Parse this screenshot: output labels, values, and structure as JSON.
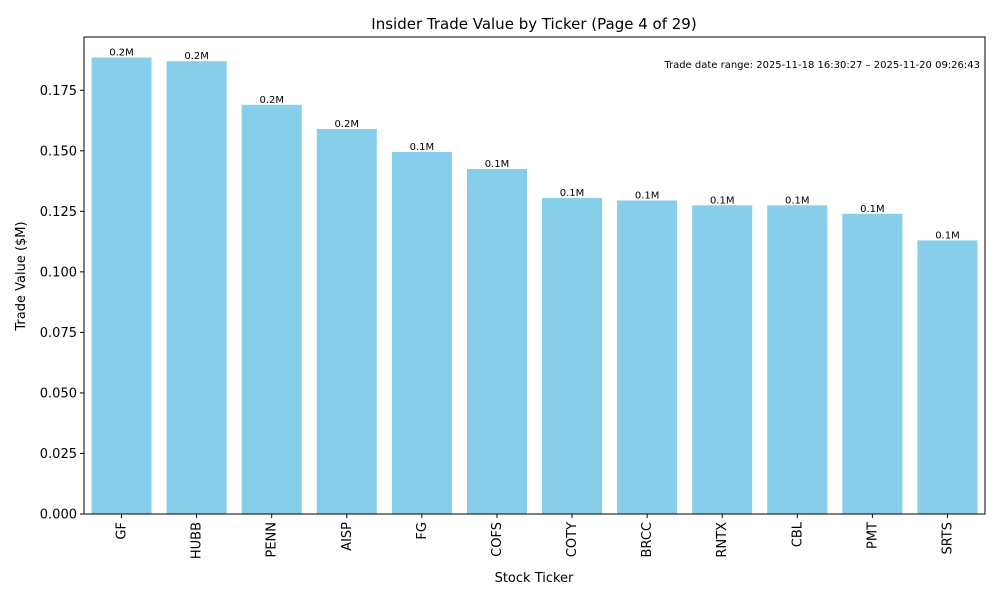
{
  "chart_data": {
    "type": "bar",
    "title": "Insider Trade Value by Ticker (Page 4 of 29)",
    "xlabel": "Stock Ticker",
    "ylabel": "Trade Value ($M)",
    "ylim": [
      0,
      0.197
    ],
    "yticks": [
      0.0,
      0.025,
      0.05,
      0.075,
      0.1,
      0.125,
      0.15,
      0.175
    ],
    "ytick_labels": [
      "0.000",
      "0.025",
      "0.050",
      "0.075",
      "0.100",
      "0.125",
      "0.150",
      "0.175"
    ],
    "categories": [
      "GF",
      "HUBB",
      "PENN",
      "AISP",
      "FG",
      "COFS",
      "COTY",
      "BRCC",
      "RNTX",
      "CBL",
      "PMT",
      "SRTS"
    ],
    "values": [
      0.1885,
      0.187,
      0.169,
      0.159,
      0.1495,
      0.1425,
      0.1305,
      0.1295,
      0.1275,
      0.1275,
      0.124,
      0.113
    ],
    "data_labels": [
      "0.2M",
      "0.2M",
      "0.2M",
      "0.2M",
      "0.1M",
      "0.1M",
      "0.1M",
      "0.1M",
      "0.1M",
      "0.1M",
      "0.1M",
      "0.1M"
    ],
    "bar_color": "#87ceeb",
    "annotation": "Trade date range: 2025-11-18 16:30:27 – 2025-11-20 09:26:43",
    "grid": false,
    "legend": "none"
  }
}
